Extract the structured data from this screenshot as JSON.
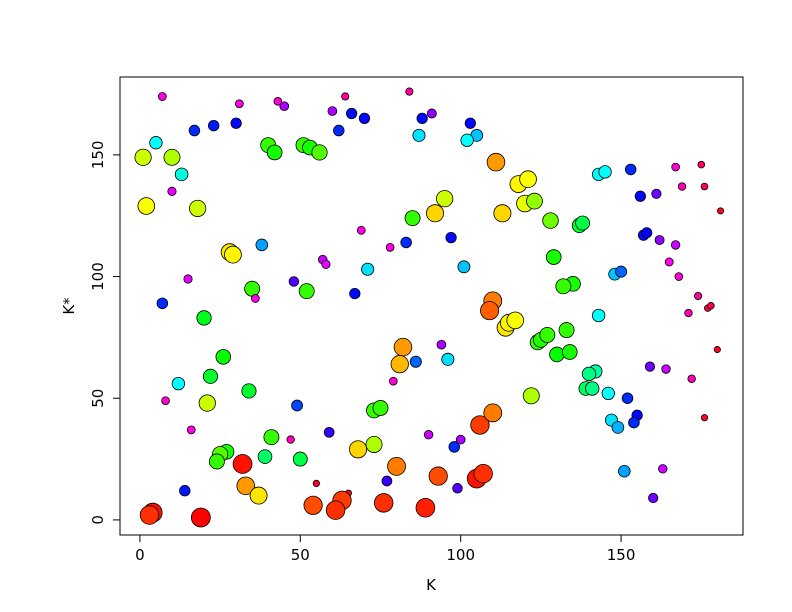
{
  "chart_data": {
    "type": "scatter",
    "title": "",
    "xlabel": "K",
    "ylabel": "K*",
    "xlim": [
      -6.2,
      188
    ],
    "ylim": [
      -6.2,
      182
    ],
    "xticks": [
      0,
      50,
      100,
      150
    ],
    "yticks": [
      0,
      50,
      100,
      150
    ],
    "grid": false,
    "point_encoding": "each point is [K, K*, hue]; hue is a 0–1 rainbow position, with marker size getting smaller as hue increases",
    "points": [
      [
        7,
        174,
        0.85
      ],
      [
        31,
        171,
        0.85
      ],
      [
        43,
        172,
        0.86
      ],
      [
        45,
        170,
        0.78
      ],
      [
        64,
        174,
        0.9
      ],
      [
        84,
        176,
        0.9
      ],
      [
        60,
        168,
        0.78
      ],
      [
        66,
        167,
        0.66
      ],
      [
        70,
        165,
        0.66
      ],
      [
        88,
        165,
        0.66
      ],
      [
        91,
        167,
        0.76
      ],
      [
        17,
        160,
        0.64
      ],
      [
        23,
        162,
        0.65
      ],
      [
        30,
        163,
        0.66
      ],
      [
        5,
        155,
        0.5
      ],
      [
        1,
        149,
        0.2
      ],
      [
        10,
        149,
        0.22
      ],
      [
        13,
        142,
        0.48
      ],
      [
        10,
        135,
        0.82
      ],
      [
        2,
        129,
        0.17
      ],
      [
        18,
        128,
        0.2
      ],
      [
        40,
        154,
        0.3
      ],
      [
        42,
        151,
        0.32
      ],
      [
        51,
        154,
        0.3
      ],
      [
        53,
        153,
        0.32
      ],
      [
        56,
        151,
        0.28
      ],
      [
        62,
        160,
        0.64
      ],
      [
        87,
        158,
        0.52
      ],
      [
        103,
        163,
        0.66
      ],
      [
        105,
        158,
        0.54
      ],
      [
        102,
        156,
        0.5
      ],
      [
        111,
        147,
        0.1
      ],
      [
        118,
        138,
        0.16
      ],
      [
        121,
        140,
        0.17
      ],
      [
        120,
        130,
        0.18
      ],
      [
        123,
        131,
        0.24
      ],
      [
        113,
        126,
        0.14
      ],
      [
        92,
        126,
        0.14
      ],
      [
        95,
        132,
        0.2
      ],
      [
        85,
        124,
        0.3
      ],
      [
        83,
        114,
        0.64
      ],
      [
        78,
        112,
        0.85
      ],
      [
        69,
        119,
        0.85
      ],
      [
        71,
        103,
        0.52
      ],
      [
        57,
        107,
        0.8
      ],
      [
        58,
        105,
        0.82
      ],
      [
        67,
        93,
        0.66
      ],
      [
        48,
        98,
        0.72
      ],
      [
        52,
        94,
        0.3
      ],
      [
        38,
        113,
        0.56
      ],
      [
        28,
        110,
        0.15
      ],
      [
        29,
        109,
        0.16
      ],
      [
        35,
        95,
        0.3
      ],
      [
        36,
        91,
        0.85
      ],
      [
        15,
        99,
        0.82
      ],
      [
        7,
        89,
        0.64
      ],
      [
        20,
        83,
        0.35
      ],
      [
        26,
        67,
        0.33
      ],
      [
        22,
        59,
        0.36
      ],
      [
        12,
        56,
        0.5
      ],
      [
        8,
        49,
        0.86
      ],
      [
        21,
        48,
        0.2
      ],
      [
        34,
        53,
        0.36
      ],
      [
        16,
        37,
        0.85
      ],
      [
        41,
        34,
        0.3
      ],
      [
        39,
        26,
        0.4
      ],
      [
        27,
        28,
        0.32
      ],
      [
        25,
        27,
        0.28
      ],
      [
        24,
        24,
        0.3
      ],
      [
        49,
        47,
        0.62
      ],
      [
        47,
        33,
        0.88
      ],
      [
        50,
        25,
        0.38
      ],
      [
        59,
        36,
        0.7
      ],
      [
        55,
        15,
        0.97
      ],
      [
        65,
        11,
        0.98
      ],
      [
        73,
        31,
        0.22
      ],
      [
        68,
        29,
        0.14
      ],
      [
        73,
        45,
        0.3
      ],
      [
        75,
        46,
        0.3
      ],
      [
        79,
        57,
        0.86
      ],
      [
        82,
        71,
        0.1
      ],
      [
        81,
        64,
        0.12
      ],
      [
        86,
        65,
        0.6
      ],
      [
        94,
        72,
        0.78
      ],
      [
        96,
        66,
        0.52
      ],
      [
        98,
        30,
        0.64
      ],
      [
        100,
        33,
        0.78
      ],
      [
        99,
        13,
        0.72
      ],
      [
        90,
        35,
        0.8
      ],
      [
        77,
        16,
        0.7
      ],
      [
        80,
        22,
        0.08
      ],
      [
        76,
        7,
        0.03
      ],
      [
        63,
        8,
        0.04
      ],
      [
        61,
        4,
        0.03
      ],
      [
        54,
        6,
        0.05
      ],
      [
        89,
        5,
        0.02
      ],
      [
        93,
        18,
        0.05
      ],
      [
        105,
        17,
        0.01
      ],
      [
        107,
        19,
        0.03
      ],
      [
        106,
        39,
        0.04
      ],
      [
        110,
        44,
        0.08
      ],
      [
        110,
        90,
        0.08
      ],
      [
        109,
        86,
        0.06
      ],
      [
        114,
        79,
        0.15
      ],
      [
        115,
        81,
        0.16
      ],
      [
        117,
        82,
        0.17
      ],
      [
        122,
        51,
        0.22
      ],
      [
        124,
        73,
        0.3
      ],
      [
        125,
        74,
        0.31
      ],
      [
        127,
        76,
        0.3
      ],
      [
        130,
        68,
        0.33
      ],
      [
        133,
        78,
        0.3
      ],
      [
        134,
        69,
        0.32
      ],
      [
        135,
        97,
        0.32
      ],
      [
        132,
        96,
        0.3
      ],
      [
        129,
        108,
        0.32
      ],
      [
        128,
        123,
        0.26
      ],
      [
        137,
        121,
        0.36
      ],
      [
        138,
        122,
        0.38
      ],
      [
        143,
        84,
        0.5
      ],
      [
        142,
        61,
        0.44
      ],
      [
        140,
        60,
        0.42
      ],
      [
        139,
        54,
        0.4
      ],
      [
        141,
        54,
        0.42
      ],
      [
        146,
        52,
        0.5
      ],
      [
        147,
        41,
        0.52
      ],
      [
        149,
        38,
        0.55
      ],
      [
        152,
        50,
        0.64
      ],
      [
        155,
        43,
        0.66
      ],
      [
        154,
        40,
        0.64
      ],
      [
        151,
        20,
        0.56
      ],
      [
        160,
        9,
        0.74
      ],
      [
        163,
        21,
        0.8
      ],
      [
        159,
        63,
        0.74
      ],
      [
        164,
        62,
        0.8
      ],
      [
        172,
        58,
        0.88
      ],
      [
        176,
        42,
        0.97
      ],
      [
        180,
        70,
        0.98
      ],
      [
        177,
        87,
        0.96
      ],
      [
        178,
        88,
        0.95
      ],
      [
        174,
        92,
        0.9
      ],
      [
        171,
        85,
        0.88
      ],
      [
        168,
        100,
        0.86
      ],
      [
        165,
        106,
        0.84
      ],
      [
        167,
        113,
        0.8
      ],
      [
        162,
        115,
        0.76
      ],
      [
        157,
        117,
        0.66
      ],
      [
        158,
        118,
        0.67
      ],
      [
        161,
        134,
        0.74
      ],
      [
        156,
        133,
        0.66
      ],
      [
        153,
        144,
        0.64
      ],
      [
        143,
        142,
        0.5
      ],
      [
        145,
        143,
        0.5
      ],
      [
        148,
        101,
        0.54
      ],
      [
        150,
        102,
        0.6
      ],
      [
        167,
        145,
        0.86
      ],
      [
        169,
        137,
        0.88
      ],
      [
        175,
        146,
        0.94
      ],
      [
        176,
        137,
        0.94
      ],
      [
        181,
        127,
        0.98
      ],
      [
        97,
        116,
        0.66
      ],
      [
        101,
        104,
        0.54
      ],
      [
        19,
        1,
        0.0
      ],
      [
        4,
        3,
        0.01
      ],
      [
        3,
        2,
        0.03
      ],
      [
        14,
        12,
        0.65
      ],
      [
        32,
        23,
        0.01
      ],
      [
        33,
        14,
        0.1
      ],
      [
        37,
        10,
        0.15
      ]
    ]
  }
}
